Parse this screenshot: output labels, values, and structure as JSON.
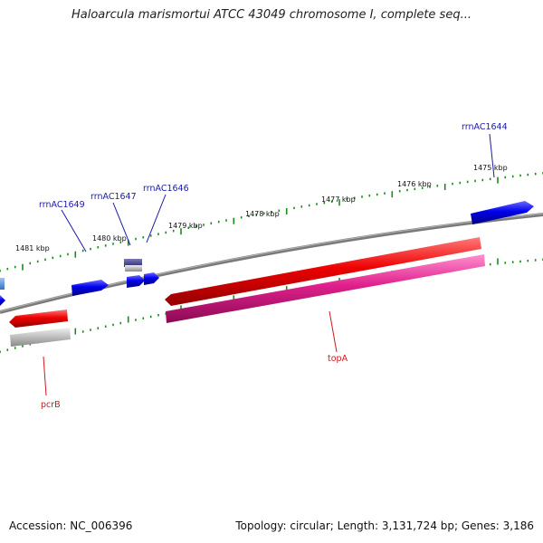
{
  "title": "Haloarcula marismortui ATCC 43049 chromosome I, complete seq...",
  "footer": {
    "accession": "Accession: NC_006396",
    "topology": "Topology: circular; Length: 3,131,724 bp; Genes: 3,186"
  },
  "scale": {
    "ticks": [
      "1475 kbp",
      "1476 kbp",
      "1477 kbp",
      "1478 kbp",
      "1479 kbp",
      "1480 kbp",
      "1481 kbp"
    ]
  },
  "genes": {
    "rrnAC1644": "rrnAC1644",
    "rrnAC1646": "rrnAC1646",
    "rrnAC1647": "rrnAC1647",
    "rrnAC1649": "rrnAC1649",
    "topA": "topA",
    "pcrB": "pcrB"
  },
  "colors": {
    "forward_gene": "#0000ee",
    "reverse_gene": "#ee0000",
    "rna_track": "#e0208c",
    "tick_green": "#1a8a1a",
    "backbone": "#808080"
  }
}
